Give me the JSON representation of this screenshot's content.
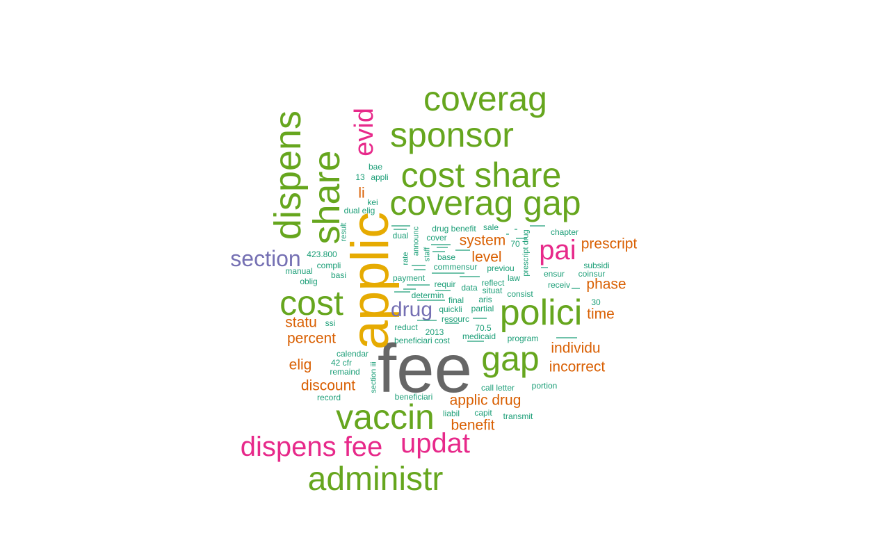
{
  "colors": {
    "grey": "#666666",
    "yellow": "#e6ab02",
    "green": "#66a61e",
    "magenta": "#e7298a",
    "purple": "#7570b3",
    "orange": "#d95f02",
    "teal": "#1b9e77"
  },
  "words": [
    "fee",
    "applic",
    "coverag",
    "sponsor",
    "cost share",
    "coverag gap",
    "dispens",
    "share",
    "evid",
    "cost",
    "polici",
    "pai",
    "gap",
    "vaccin",
    "dispens fee",
    "updat",
    "administr",
    "section",
    "drug",
    "prescript",
    "phase",
    "time",
    "system",
    "level",
    "statu",
    "percent",
    "elig",
    "discount",
    "individu",
    "incorrect",
    "applic drug",
    "benefit",
    "li",
    "bae",
    "13",
    "appli",
    "kei",
    "dual elig",
    "result",
    "423.800",
    "compli",
    "manual",
    "oblig",
    "basi",
    "ssi",
    "calendar",
    "42 cfr",
    "remaind",
    "record",
    "section iii",
    "drug benefit",
    "sale",
    "chapter",
    "dual",
    "cover",
    "announc",
    "staff",
    "rate",
    "commensur",
    "previou",
    "payment",
    "requir",
    "reflect",
    "law",
    "determin",
    "data",
    "situat",
    "consist",
    "final",
    "aris",
    "quickli",
    "partial",
    "resourc",
    "reduct",
    "2013",
    "70.5",
    "medicaid",
    "beneficiari cost",
    "program",
    "base",
    "70",
    "prescript drug",
    "ensur",
    "coinsur",
    "subsidi",
    "receiv",
    "30",
    "call letter",
    "portion",
    "beneficiari",
    "liabil",
    "capit",
    "transmit"
  ]
}
